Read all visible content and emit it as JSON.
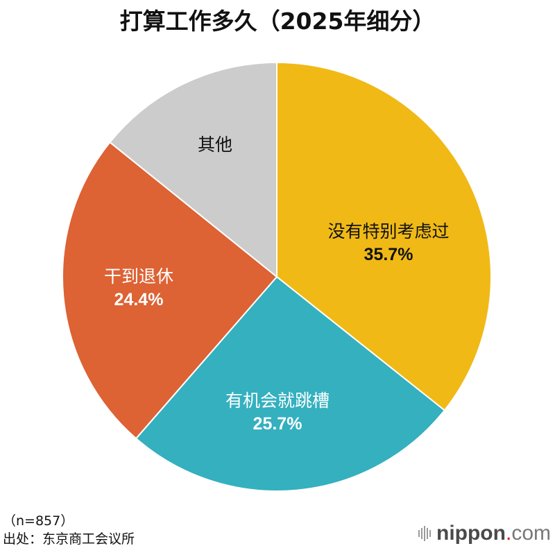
{
  "title": "打算工作多久（2025年细分）",
  "chart_data": {
    "type": "pie",
    "title": "打算工作多久（2025年细分）",
    "start_angle": "12 o'clock",
    "direction": "clockwise",
    "categories": [
      "没有特别考虑过",
      "有机会就跳槽",
      "干到退休",
      "其他"
    ],
    "values": [
      35.7,
      25.7,
      24.4,
      14.2
    ],
    "colors": [
      "#f0b916",
      "#34b0bf",
      "#dd6234",
      "#cccccc"
    ],
    "labels_shown": [
      "35.7%",
      "25.7%",
      "24.4%",
      ""
    ],
    "units": "%"
  },
  "slices": [
    {
      "name": "没有特别考虑过",
      "pct": "35.7%",
      "color": "#f0b916",
      "text_color": "#111111"
    },
    {
      "name": "有机会就跳槽",
      "pct": "25.7%",
      "color": "#34b0bf",
      "text_color": "#ffffff"
    },
    {
      "name": "干到退休",
      "pct": "24.4%",
      "color": "#dd6234",
      "text_color": "#ffffff"
    },
    {
      "name": "其他",
      "pct": "",
      "color": "#cccccc",
      "text_color": "#111111"
    }
  ],
  "footer": {
    "sample": "（n=857）",
    "source": "出处：东京商工会议所"
  },
  "logo": {
    "main": "nippon",
    "dot": ".",
    "suffix": "com"
  }
}
